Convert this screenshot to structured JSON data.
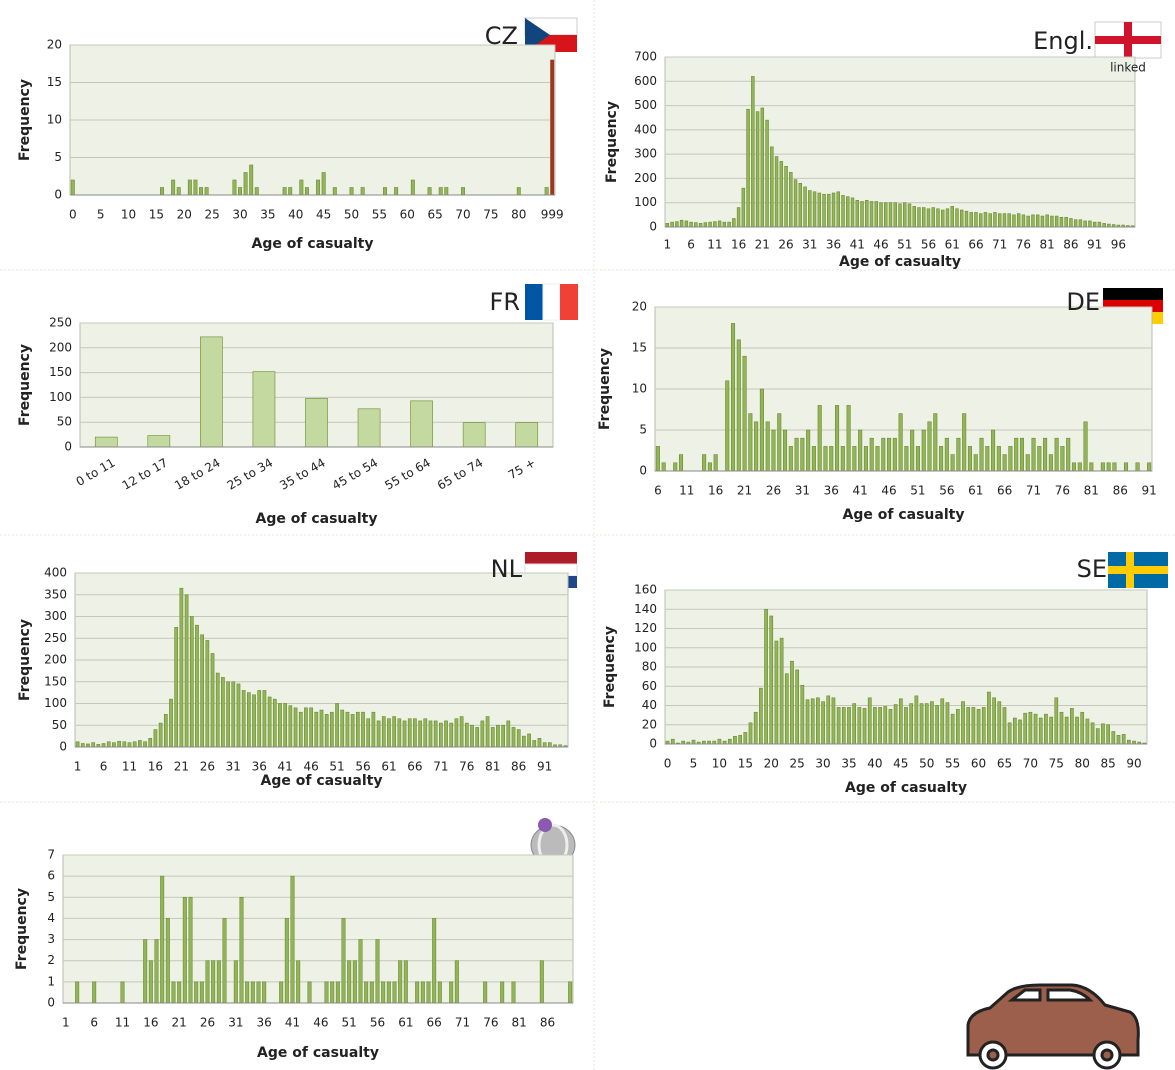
{
  "chart_data": [
    {
      "type": "bar",
      "title": "CZ",
      "ylabel": "Frequency",
      "xlabel": "Age of casualty",
      "color": "#93b55a",
      "edge_color": "#6b8a2e",
      "last_bar_color": "#a0341a",
      "grid": true,
      "ylim": [
        0,
        20
      ],
      "yticks": [
        0,
        5,
        10,
        15,
        20
      ],
      "categories": [
        "0",
        null,
        null,
        null,
        null,
        "5",
        null,
        null,
        null,
        null,
        "10",
        null,
        null,
        null,
        null,
        "15",
        null,
        null,
        null,
        null,
        "20",
        null,
        null,
        null,
        null,
        "25",
        null,
        null,
        null,
        null,
        "30",
        null,
        null,
        null,
        null,
        "35",
        null,
        null,
        null,
        null,
        "40",
        null,
        null,
        null,
        null,
        "45",
        null,
        null,
        null,
        null,
        "50",
        null,
        null,
        null,
        null,
        "55",
        null,
        null,
        null,
        null,
        "60",
        null,
        null,
        null,
        null,
        "65",
        null,
        null,
        null,
        null,
        "70",
        null,
        null,
        null,
        null,
        "75",
        null,
        null,
        null,
        null,
        "80",
        null,
        null,
        null,
        null,
        null,
        "999"
      ],
      "values": [
        2,
        0,
        0,
        0,
        0,
        0,
        0,
        0,
        0,
        0,
        0,
        0,
        0,
        0,
        0,
        0,
        1,
        0,
        2,
        1,
        0,
        2,
        2,
        1,
        1,
        0,
        0,
        0,
        0,
        2,
        1,
        3,
        4,
        1,
        0,
        0,
        0,
        0,
        1,
        1,
        0,
        2,
        1,
        0,
        2,
        3,
        0,
        1,
        0,
        0,
        1,
        0,
        1,
        0,
        0,
        0,
        1,
        0,
        1,
        0,
        0,
        2,
        0,
        0,
        1,
        0,
        1,
        1,
        0,
        0,
        1,
        0,
        0,
        0,
        0,
        0,
        0,
        0,
        0,
        0,
        1,
        0,
        0,
        0,
        0,
        1,
        18
      ]
    },
    {
      "type": "bar",
      "title": "Engl.",
      "annotation": "linked",
      "ylabel": "Frequency",
      "xlabel": "Age of casualty",
      "color": "#93b55a",
      "edge_color": "#6b8a2e",
      "grid": true,
      "ylim": [
        0,
        700
      ],
      "yticks": [
        0,
        100,
        200,
        300,
        400,
        500,
        600,
        700
      ],
      "categories": [
        "1",
        null,
        null,
        null,
        null,
        "6",
        null,
        null,
        null,
        null,
        "11",
        null,
        null,
        null,
        null,
        "16",
        null,
        null,
        null,
        null,
        "21",
        null,
        null,
        null,
        null,
        "26",
        null,
        null,
        null,
        null,
        "31",
        null,
        null,
        null,
        null,
        "36",
        null,
        null,
        null,
        null,
        "41",
        null,
        null,
        null,
        null,
        "46",
        null,
        null,
        null,
        null,
        "51",
        null,
        null,
        null,
        null,
        "56",
        null,
        null,
        null,
        null,
        "61",
        null,
        null,
        null,
        null,
        "66",
        null,
        null,
        null,
        null,
        "71",
        null,
        null,
        null,
        null,
        "76",
        null,
        null,
        null,
        null,
        "81",
        null,
        null,
        null,
        null,
        "86",
        null,
        null,
        null,
        null,
        "91",
        null,
        null,
        null,
        null,
        "96",
        null,
        null,
        null
      ],
      "values": [
        15,
        20,
        22,
        28,
        25,
        20,
        18,
        15,
        18,
        20,
        22,
        25,
        20,
        20,
        35,
        80,
        160,
        485,
        620,
        475,
        490,
        440,
        330,
        290,
        270,
        250,
        225,
        195,
        180,
        165,
        150,
        145,
        140,
        135,
        135,
        140,
        145,
        130,
        125,
        120,
        110,
        105,
        110,
        105,
        105,
        100,
        100,
        100,
        100,
        95,
        100,
        95,
        85,
        80,
        80,
        75,
        80,
        75,
        70,
        75,
        85,
        75,
        70,
        65,
        60,
        60,
        55,
        60,
        55,
        60,
        55,
        55,
        55,
        50,
        55,
        50,
        45,
        50,
        50,
        45,
        50,
        45,
        45,
        40,
        40,
        35,
        30,
        30,
        25,
        25,
        20,
        20,
        15,
        12,
        10,
        8,
        8,
        6,
        5
      ]
    },
    {
      "type": "bar",
      "title": "FR",
      "ylabel": "Frequency",
      "xlabel": "Age of casualty",
      "color": "#c3d9a0",
      "edge_color": "#6b8a2e",
      "grid": true,
      "ylim": [
        0,
        250
      ],
      "yticks": [
        0,
        50,
        100,
        150,
        200,
        250
      ],
      "categories": [
        "0 to 11",
        "12 to 17",
        "18 to 24",
        "25 to 34",
        "35 to 44",
        "45 to 54",
        "55 to 64",
        "65 to 74",
        "75 +"
      ],
      "values": [
        20,
        23,
        222,
        152,
        98,
        77,
        93,
        49,
        49
      ]
    },
    {
      "type": "bar",
      "title": "DE",
      "ylabel": "Frequency",
      "xlabel": "Age of casualty",
      "color": "#93b55a",
      "edge_color": "#6b8a2e",
      "grid": true,
      "ylim": [
        0,
        20
      ],
      "yticks": [
        0,
        5,
        10,
        15,
        20
      ],
      "categories": [
        "6",
        null,
        null,
        null,
        null,
        "11",
        null,
        null,
        null,
        null,
        "16",
        null,
        null,
        null,
        null,
        "21",
        null,
        null,
        null,
        null,
        "26",
        null,
        null,
        null,
        null,
        "31",
        null,
        null,
        null,
        null,
        "36",
        null,
        null,
        null,
        null,
        "41",
        null,
        null,
        null,
        null,
        "46",
        null,
        null,
        null,
        null,
        "51",
        null,
        null,
        null,
        null,
        "56",
        null,
        null,
        null,
        null,
        "61",
        null,
        null,
        null,
        null,
        "66",
        null,
        null,
        null,
        null,
        "71",
        null,
        null,
        null,
        null,
        "76",
        null,
        null,
        null,
        null,
        "81",
        null,
        null,
        null,
        null,
        "86",
        null,
        null,
        null,
        null,
        "91"
      ],
      "values": [
        3,
        1,
        0,
        1,
        2,
        0,
        0,
        0,
        2,
        1,
        2,
        0,
        11,
        18,
        16,
        14,
        7,
        6,
        10,
        6,
        5,
        7,
        5,
        3,
        4,
        4,
        5,
        3,
        8,
        3,
        3,
        8,
        3,
        8,
        3,
        5,
        3,
        4,
        3,
        4,
        4,
        4,
        7,
        3,
        5,
        3,
        5,
        6,
        7,
        3,
        4,
        2,
        4,
        7,
        3,
        2,
        4,
        3,
        5,
        3,
        2,
        3,
        4,
        4,
        2,
        4,
        3,
        4,
        2,
        4,
        3,
        4,
        1,
        1,
        6,
        1,
        0,
        1,
        1,
        1,
        0,
        1,
        0,
        1,
        0,
        1
      ]
    },
    {
      "type": "bar",
      "title": "NL",
      "ylabel": "Frequency",
      "xlabel": "Age of casualty",
      "color": "#93b55a",
      "edge_color": "#6b8a2e",
      "grid": true,
      "ylim": [
        0,
        400
      ],
      "yticks": [
        0,
        50,
        100,
        150,
        200,
        250,
        300,
        350,
        400
      ],
      "categories": [
        "1",
        null,
        null,
        null,
        null,
        "6",
        null,
        null,
        null,
        null,
        "11",
        null,
        null,
        null,
        null,
        "16",
        null,
        null,
        null,
        null,
        "21",
        null,
        null,
        null,
        null,
        "26",
        null,
        null,
        null,
        null,
        "31",
        null,
        null,
        null,
        null,
        "36",
        null,
        null,
        null,
        null,
        "41",
        null,
        null,
        null,
        null,
        "46",
        null,
        null,
        null,
        null,
        "51",
        null,
        null,
        null,
        null,
        "56",
        null,
        null,
        null,
        null,
        "61",
        null,
        null,
        null,
        null,
        "66",
        null,
        null,
        null,
        null,
        "71",
        null,
        null,
        null,
        null,
        "76",
        null,
        null,
        null,
        null,
        "81",
        null,
        null,
        null,
        null,
        "86",
        null,
        null,
        null,
        null,
        "91",
        null,
        null,
        null,
        null
      ],
      "values": [
        12,
        8,
        7,
        10,
        6,
        8,
        12,
        10,
        13,
        12,
        10,
        12,
        15,
        12,
        20,
        40,
        55,
        75,
        110,
        275,
        365,
        350,
        300,
        280,
        258,
        245,
        215,
        170,
        160,
        150,
        150,
        145,
        130,
        125,
        120,
        130,
        130,
        115,
        110,
        100,
        100,
        95,
        90,
        80,
        90,
        90,
        80,
        85,
        75,
        80,
        100,
        85,
        80,
        75,
        80,
        80,
        65,
        80,
        60,
        70,
        65,
        70,
        65,
        60,
        65,
        65,
        60,
        65,
        60,
        60,
        55,
        60,
        55,
        65,
        70,
        55,
        50,
        45,
        60,
        70,
        45,
        50,
        50,
        60,
        45,
        40,
        25,
        30,
        15,
        20,
        10,
        10,
        5,
        5,
        3
      ]
    },
    {
      "type": "bar",
      "title": "SE",
      "ylabel": "Frequency",
      "xlabel": "Age of casualty",
      "color": "#93b55a",
      "edge_color": "#6b8a2e",
      "grid": true,
      "ylim": [
        0,
        160
      ],
      "yticks": [
        0,
        20,
        40,
        60,
        80,
        100,
        120,
        140,
        160
      ],
      "categories": [
        "0",
        null,
        null,
        null,
        null,
        "5",
        null,
        null,
        null,
        null,
        "10",
        null,
        null,
        null,
        null,
        "15",
        null,
        null,
        null,
        null,
        "20",
        null,
        null,
        null,
        null,
        "25",
        null,
        null,
        null,
        null,
        "30",
        null,
        null,
        null,
        null,
        "35",
        null,
        null,
        null,
        null,
        "40",
        null,
        null,
        null,
        null,
        "45",
        null,
        null,
        null,
        null,
        "50",
        null,
        null,
        null,
        null,
        "55",
        null,
        null,
        null,
        null,
        "60",
        null,
        null,
        null,
        null,
        "65",
        null,
        null,
        null,
        null,
        "70",
        null,
        null,
        null,
        null,
        "75",
        null,
        null,
        null,
        null,
        "80",
        null,
        null,
        null,
        null,
        "85",
        null,
        null,
        null,
        null,
        "90",
        null,
        null
      ],
      "values": [
        3,
        5,
        1,
        3,
        2,
        4,
        2,
        3,
        3,
        3,
        5,
        3,
        5,
        8,
        9,
        12,
        22,
        33,
        58,
        140,
        133,
        107,
        110,
        73,
        86,
        77,
        61,
        46,
        47,
        48,
        44,
        50,
        48,
        38,
        38,
        38,
        42,
        38,
        37,
        48,
        38,
        38,
        39,
        36,
        41,
        47,
        38,
        42,
        50,
        42,
        42,
        44,
        40,
        47,
        43,
        31,
        36,
        44,
        38,
        38,
        36,
        38,
        54,
        48,
        44,
        38,
        22,
        27,
        25,
        32,
        33,
        31,
        27,
        31,
        28,
        48,
        33,
        28,
        37,
        28,
        33,
        26,
        22,
        16,
        21,
        20,
        13,
        9,
        10,
        4,
        3,
        2,
        1
      ]
    },
    {
      "type": "bar",
      "ylabel": "Frequency",
      "xlabel": "Age of casualty",
      "color": "#93b55a",
      "edge_color": "#6b8a2e",
      "grid": true,
      "ylim": [
        0,
        7
      ],
      "yticks": [
        0,
        1,
        2,
        3,
        4,
        5,
        6,
        7
      ],
      "categories": [
        "1",
        null,
        null,
        null,
        null,
        "6",
        null,
        null,
        null,
        null,
        "11",
        null,
        null,
        null,
        null,
        "16",
        null,
        null,
        null,
        null,
        "21",
        null,
        null,
        null,
        null,
        "26",
        null,
        null,
        null,
        null,
        "31",
        null,
        null,
        null,
        null,
        "36",
        null,
        null,
        null,
        null,
        "41",
        null,
        null,
        null,
        null,
        "46",
        null,
        null,
        null,
        null,
        "51",
        null,
        null,
        null,
        null,
        "56",
        null,
        null,
        null,
        null,
        "61",
        null,
        null,
        null,
        null,
        "66",
        null,
        null,
        null,
        null,
        "71",
        null,
        null,
        null,
        null,
        "76",
        null,
        null,
        null,
        null,
        "81",
        null,
        null,
        null,
        null,
        "86",
        null,
        null,
        null,
        null
      ],
      "values": [
        0,
        0,
        1,
        0,
        0,
        1,
        0,
        0,
        0,
        0,
        1,
        0,
        0,
        0,
        3,
        2,
        3,
        6,
        4,
        1,
        1,
        5,
        5,
        1,
        1,
        2,
        2,
        2,
        4,
        0,
        2,
        5,
        1,
        1,
        1,
        1,
        0,
        0,
        1,
        4,
        6,
        2,
        0,
        1,
        0,
        0,
        1,
        1,
        1,
        4,
        2,
        2,
        3,
        1,
        1,
        3,
        1,
        1,
        1,
        2,
        2,
        0,
        1,
        1,
        1,
        4,
        1,
        0,
        1,
        2,
        0,
        0,
        0,
        0,
        1,
        0,
        0,
        1,
        0,
        1,
        0,
        0,
        0,
        0,
        2,
        0,
        0,
        0,
        0,
        1
      ]
    }
  ]
}
